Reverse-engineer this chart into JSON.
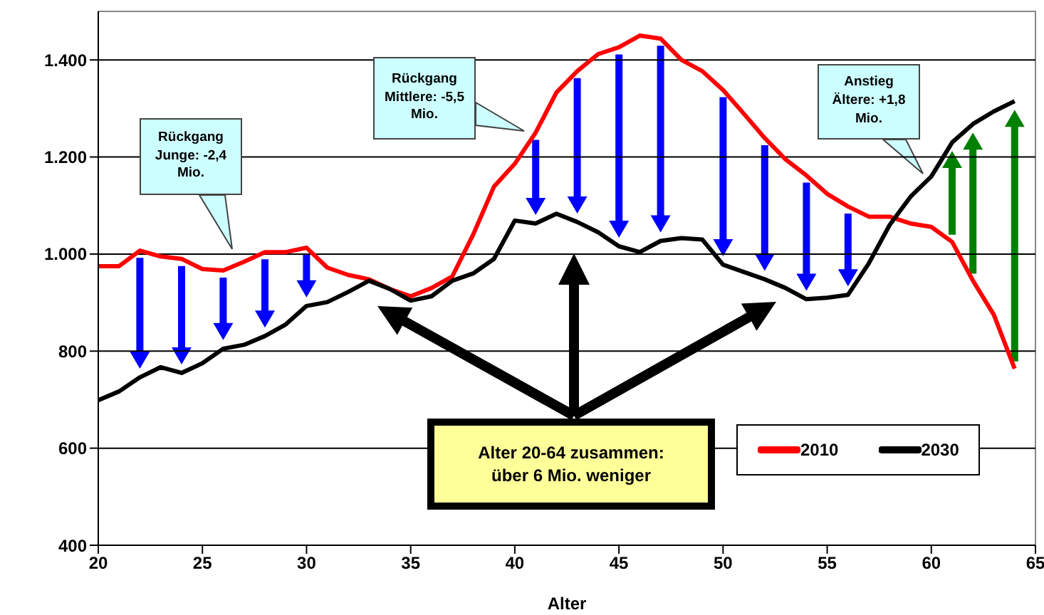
{
  "chart_data": {
    "type": "line",
    "xlabel": "Alter",
    "x": [
      20,
      21,
      22,
      23,
      24,
      25,
      26,
      27,
      28,
      29,
      30,
      31,
      32,
      33,
      34,
      35,
      36,
      37,
      38,
      39,
      40,
      41,
      42,
      43,
      44,
      45,
      46,
      47,
      48,
      49,
      50,
      51,
      52,
      53,
      54,
      55,
      56,
      57,
      58,
      59,
      60,
      61,
      62,
      63,
      64
    ],
    "series": [
      {
        "name": "2010",
        "color": "#ff0000",
        "values": [
          975,
          975,
          1007,
          995,
          990,
          969,
          966,
          984,
          1004,
          1004,
          1013,
          972,
          957,
          948,
          928,
          913,
          930,
          954,
          1040,
          1139,
          1186,
          1250,
          1333,
          1377,
          1412,
          1426,
          1450,
          1444,
          1400,
          1377,
          1338,
          1289,
          1239,
          1195,
          1162,
          1124,
          1098,
          1077,
          1077,
          1063,
          1056,
          1025,
          945,
          875,
          764
        ]
      },
      {
        "name": "2030",
        "color": "#000000",
        "values": [
          699,
          717,
          746,
          767,
          755,
          775,
          805,
          813,
          831,
          855,
          893,
          901,
          922,
          945,
          928,
          904,
          913,
          945,
          960,
          990,
          1069,
          1063,
          1083,
          1066,
          1045,
          1016,
          1004,
          1027,
          1033,
          1030,
          978,
          963,
          948,
          930,
          907,
          910,
          916,
          981,
          1060,
          1118,
          1160,
          1230,
          1268,
          1294,
          1315
        ]
      }
    ],
    "xlim": [
      20,
      65
    ],
    "xticks": [
      20,
      25,
      30,
      35,
      40,
      45,
      50,
      55,
      60,
      65
    ],
    "ylim": [
      400,
      1500
    ],
    "yticks": [
      {
        "value": 400,
        "label": "400"
      },
      {
        "value": 600,
        "label": "600"
      },
      {
        "value": 800,
        "label": "800"
      },
      {
        "value": 1000,
        "label": "1.000"
      },
      {
        "value": 1200,
        "label": "1.200"
      },
      {
        "value": 1400,
        "label": "1.400"
      }
    ],
    "grid": "y",
    "legend": "bottom right",
    "annotations": [
      "Rückgang Junge: -2,4 Mio.",
      "Rückgang Mittlere: -5,5 Mio.",
      "Anstieg Ältere: +1,8 Mio.",
      "Alter 20-64 zusammen: über 6 Mio. weniger"
    ]
  }
}
